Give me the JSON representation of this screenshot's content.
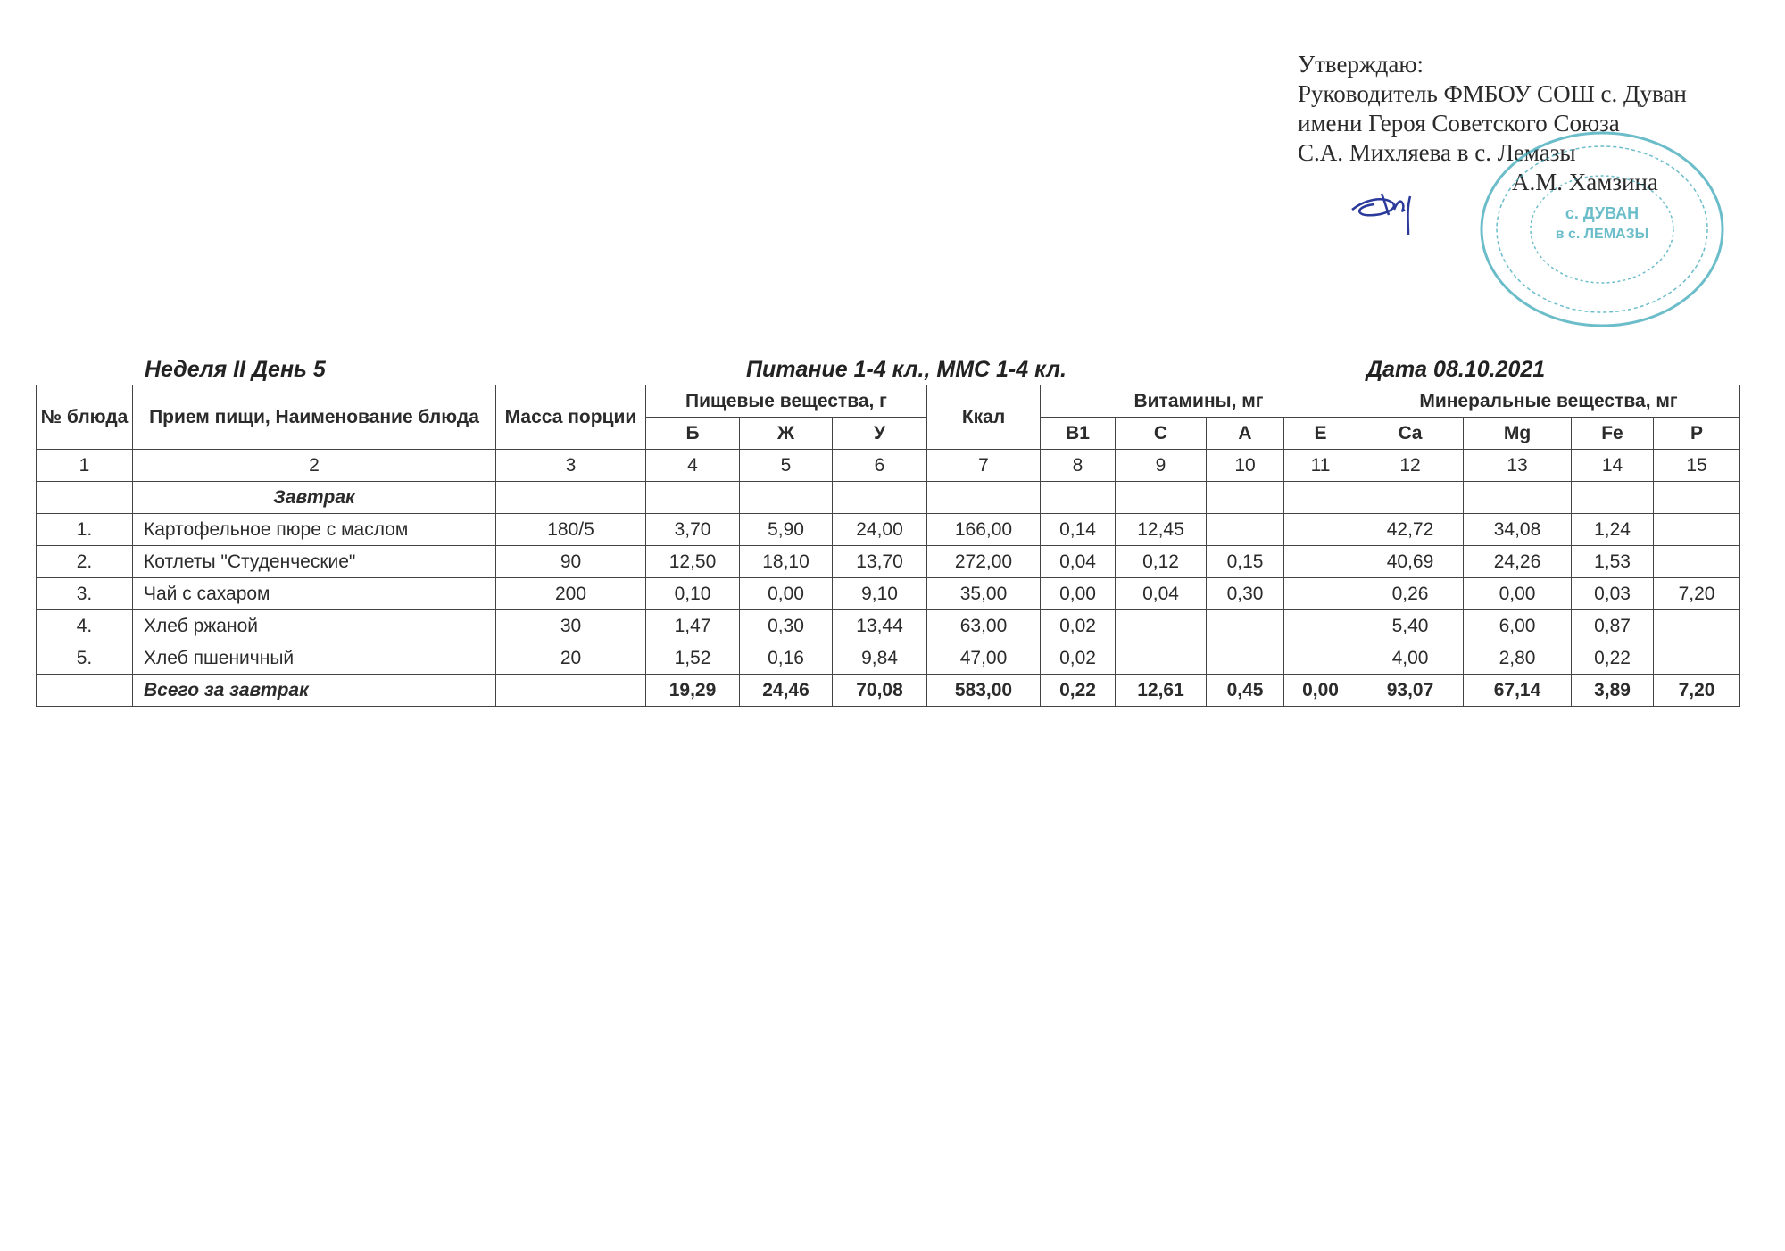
{
  "approval": {
    "lines": [
      "Утверждаю:",
      "Руководитель ФМБОУ СОШ с. Дуван",
      "имени Героя Советского Союза",
      "С.А. Михляева в с. Лемазы"
    ],
    "signatory": "А.М. Хамзина",
    "stamp_text": [
      "с. ДУВАН",
      "в с. ЛЕМАЗЫ"
    ],
    "stamp_color": "#3aa7b8",
    "signature_color": "#2a3a9a"
  },
  "titles": {
    "week_day": "Неделя II День 5",
    "nutrition": "Питание  1-4 кл., ММС 1-4 кл.",
    "date": "Дата 08.10.2021"
  },
  "table": {
    "headers": {
      "num": "№ блюда",
      "name": "Прием пищи, Наименование блюда",
      "mass": "Масса порции",
      "nutrients": "Пищевые вещества, г",
      "kcal": "Ккал",
      "vitamins": "Витамины, мг",
      "minerals": "Минеральные вещества, мг",
      "sub": [
        "Б",
        "Ж",
        "У",
        "B1",
        "C",
        "A",
        "E",
        "Ca",
        "Mg",
        "Fe",
        "P"
      ]
    },
    "column_numbers": [
      "1",
      "2",
      "3",
      "4",
      "5",
      "6",
      "7",
      "8",
      "9",
      "10",
      "11",
      "12",
      "13",
      "14",
      "15"
    ],
    "section": "Завтрак",
    "rows": [
      [
        "1.",
        "Картофельное пюре с маслом",
        "180/5",
        "3,70",
        "5,90",
        "24,00",
        "166,00",
        "0,14",
        "12,45",
        "",
        "",
        "42,72",
        "34,08",
        "1,24",
        ""
      ],
      [
        "2.",
        "Котлеты \"Студенческие\"",
        "90",
        "12,50",
        "18,10",
        "13,70",
        "272,00",
        "0,04",
        "0,12",
        "0,15",
        "",
        "40,69",
        "24,26",
        "1,53",
        ""
      ],
      [
        "3.",
        "Чай с сахаром",
        "200",
        "0,10",
        "0,00",
        "9,10",
        "35,00",
        "0,00",
        "0,04",
        "0,30",
        "",
        "0,26",
        "0,00",
        "0,03",
        "7,20"
      ],
      [
        "4.",
        "Хлеб ржаной",
        "30",
        "1,47",
        "0,30",
        "13,44",
        "63,00",
        "0,02",
        "",
        "",
        "",
        "5,40",
        "6,00",
        "0,87",
        ""
      ],
      [
        "5.",
        "Хлеб пшеничный",
        "20",
        "1,52",
        "0,16",
        "9,84",
        "47,00",
        "0,02",
        "",
        "",
        "",
        "4,00",
        "2,80",
        "0,22",
        ""
      ]
    ],
    "total": [
      "",
      "Всего за завтрак",
      "",
      "19,29",
      "24,46",
      "70,08",
      "583,00",
      "0,22",
      "12,61",
      "0,45",
      "0,00",
      "93,07",
      "67,14",
      "3,89",
      "7,20"
    ]
  }
}
